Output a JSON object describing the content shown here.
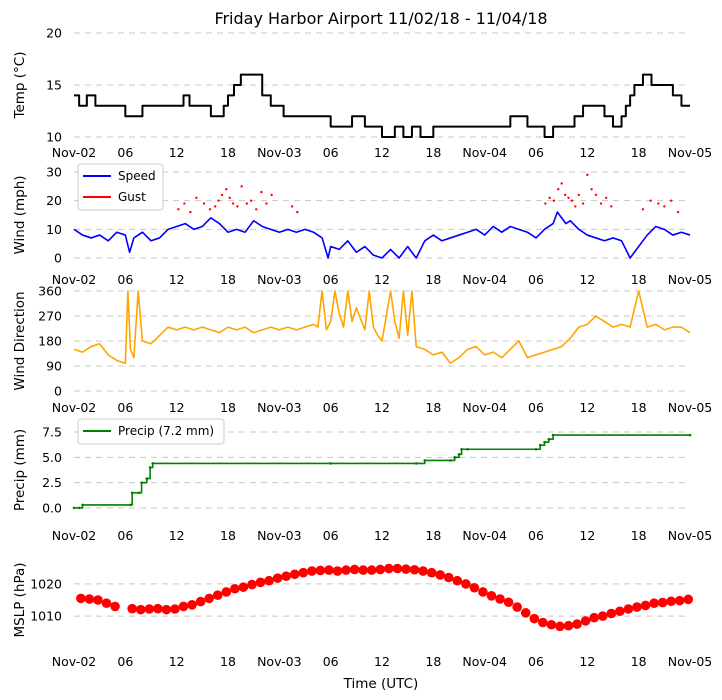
{
  "chart_data": {
    "title": "Friday Harbor Airport 11/02/18 - 11/04/18",
    "xlabel": "Time (UTC)",
    "x_unit": "hours since 2018-11-02 00:00 UTC",
    "xlim": [
      0,
      72
    ],
    "x_ticks": [
      {
        "h": 0,
        "label": "Nov-02"
      },
      {
        "h": 6,
        "label": "06"
      },
      {
        "h": 12,
        "label": "12"
      },
      {
        "h": 18,
        "label": "18"
      },
      {
        "h": 24,
        "label": "Nov-03"
      },
      {
        "h": 30,
        "label": "06"
      },
      {
        "h": 36,
        "label": "12"
      },
      {
        "h": 42,
        "label": "18"
      },
      {
        "h": 48,
        "label": "Nov-04"
      },
      {
        "h": 54,
        "label": "06"
      },
      {
        "h": 60,
        "label": "12"
      },
      {
        "h": 66,
        "label": "18"
      },
      {
        "h": 72,
        "label": "Nov-05"
      }
    ],
    "panels": [
      {
        "id": "temp",
        "type": "line",
        "ylabel": "Temp ($^\\circ$C)",
        "ylabel_text": "Temp (°C)",
        "ylim": [
          10,
          20
        ],
        "y_ticks": [
          10,
          15,
          20
        ],
        "color": "#000000",
        "series": [
          {
            "name": "Temp",
            "x": [
              0,
              0.6,
              1.5,
              2.5,
              5,
              6,
              8,
              10,
              12,
              12.8,
              13.5,
              16,
              17.5,
              18,
              18.7,
              19.5,
              22,
              23,
              24.5,
              25.5,
              28,
              30,
              31.5,
              32.5,
              34,
              36,
              37.5,
              38.5,
              39.5,
              40.5,
              42,
              46,
              48,
              50,
              51,
              53,
              54,
              55,
              56,
              57,
              58,
              58.5,
              59.5,
              62,
              63,
              64,
              64.5,
              65,
              65.5,
              66.5,
              67.5,
              68.5,
              70,
              71,
              72
            ],
            "y": [
              14,
              13,
              14,
              13,
              13,
              12,
              13,
              13,
              13,
              14,
              13,
              12,
              13,
              14,
              15,
              16,
              14,
              13,
              12,
              12,
              12,
              11,
              11,
              12,
              11,
              10,
              11,
              10,
              11,
              10,
              11,
              11,
              11,
              11,
              12,
              11,
              11,
              10,
              11,
              11,
              11,
              12,
              13,
              12,
              11,
              12,
              13,
              14,
              15,
              16,
              15,
              15,
              14,
              13,
              13
            ]
          }
        ]
      },
      {
        "id": "wind",
        "type": "line+scatter",
        "ylabel": "Wind (mph)",
        "ylim": [
          0,
          30
        ],
        "y_ticks": [
          0,
          10,
          20,
          30
        ],
        "legend": [
          {
            "label": "Speed",
            "color": "#0000ff"
          },
          {
            "label": "Gust",
            "color": "#ff0000"
          }
        ],
        "series": [
          {
            "name": "Speed",
            "color": "#0000ff",
            "x": [
              0,
              1,
              2,
              3,
              4,
              5,
              6,
              6.5,
              7,
              8,
              9,
              10,
              11,
              12,
              13,
              14,
              15,
              16,
              17,
              18,
              19,
              20,
              21,
              22,
              23,
              24,
              25,
              26,
              27,
              28,
              29,
              29.7,
              30,
              31,
              32,
              33,
              34,
              35,
              36,
              37,
              38,
              39,
              40,
              41,
              42,
              43,
              44,
              45,
              46,
              47,
              48,
              49,
              50,
              51,
              52,
              53,
              54,
              55,
              56,
              56.5,
              57,
              57.5,
              58,
              59,
              60,
              61,
              62,
              63,
              64,
              65,
              66,
              67,
              68,
              69,
              70,
              71,
              72
            ],
            "y": [
              10,
              8,
              7,
              8,
              6,
              9,
              8,
              2,
              7,
              9,
              6,
              7,
              10,
              11,
              12,
              10,
              11,
              14,
              12,
              9,
              10,
              9,
              13,
              11,
              10,
              9,
              10,
              9,
              10,
              9,
              7,
              0,
              4,
              3,
              6,
              2,
              4,
              1,
              0,
              3,
              0,
              4,
              0,
              6,
              8,
              6,
              7,
              8,
              9,
              10,
              8,
              11,
              9,
              11,
              10,
              9,
              7,
              10,
              12,
              16,
              14,
              12,
              13,
              10,
              8,
              7,
              6,
              7,
              6,
              0,
              4,
              8,
              11,
              10,
              8,
              9,
              8
            ]
          },
          {
            "name": "Gust",
            "color": "#ff0000",
            "x": [
              12.2,
              12.9,
              13.6,
              14.3,
              15.2,
              15.9,
              16.5,
              16.9,
              17.3,
              17.8,
              18.2,
              18.6,
              19.1,
              19.6,
              20.2,
              20.7,
              21.3,
              21.9,
              22.5,
              23.1,
              25.5,
              26.1,
              55.1,
              55.6,
              56.1,
              56.6,
              57.0,
              57.4,
              57.8,
              58.2,
              58.6,
              59.0,
              59.5,
              60.0,
              60.5,
              61.0,
              61.6,
              62.2,
              62.8,
              66.5,
              67.4,
              68.3,
              69.0,
              69.8,
              70.6
            ],
            "y": [
              17,
              19,
              16,
              21,
              19,
              17,
              18,
              20,
              22,
              24,
              21,
              19,
              18,
              25,
              19,
              20,
              17,
              23,
              19,
              22,
              18,
              16,
              19,
              21,
              20,
              24,
              26,
              22,
              21,
              20,
              18,
              22,
              19,
              29,
              24,
              22,
              19,
              21,
              18,
              17,
              20,
              19,
              18,
              20,
              16
            ]
          }
        ]
      },
      {
        "id": "dir",
        "type": "line",
        "ylabel": "Wind Direction",
        "ylim": [
          0,
          360
        ],
        "y_ticks": [
          0,
          90,
          180,
          270,
          360
        ],
        "color": "#ffa500",
        "series": [
          {
            "name": "Direction",
            "x": [
              0,
              1,
              2,
              3,
              4,
              5,
              6,
              6.3,
              6.6,
              7,
              7.5,
              8,
              9,
              10,
              11,
              12,
              13,
              14,
              15,
              16,
              17,
              18,
              19,
              20,
              21,
              22,
              23,
              24,
              25,
              26,
              27,
              28,
              28.5,
              29,
              29.5,
              30,
              30.5,
              31,
              31.5,
              32,
              32.5,
              33,
              34,
              34.5,
              35,
              35.5,
              36,
              37,
              37.5,
              38,
              38.5,
              39,
              39.5,
              40,
              41,
              42,
              43,
              44,
              45,
              46,
              47,
              48,
              49,
              50,
              51,
              52,
              53,
              54,
              55,
              56,
              57,
              58,
              59,
              60,
              61,
              62,
              63,
              64,
              65,
              66,
              67,
              68,
              69,
              70,
              71,
              72
            ],
            "y": [
              150,
              140,
              160,
              170,
              130,
              110,
              100,
              360,
              150,
              120,
              360,
              180,
              170,
              200,
              230,
              220,
              230,
              220,
              230,
              220,
              210,
              230,
              220,
              230,
              210,
              220,
              230,
              220,
              230,
              220,
              230,
              240,
              230,
              360,
              220,
              250,
              360,
              280,
              230,
              360,
              250,
              300,
              220,
              360,
              230,
              200,
              180,
              360,
              250,
              190,
              360,
              200,
              360,
              160,
              150,
              130,
              140,
              100,
              120,
              150,
              160,
              130,
              140,
              120,
              150,
              180,
              120,
              130,
              140,
              150,
              160,
              190,
              230,
              240,
              270,
              250,
              230,
              240,
              230,
              360,
              230,
              240,
              220,
              230,
              230,
              210
            ]
          }
        ]
      },
      {
        "id": "precip",
        "type": "step",
        "ylabel": "Precip (mm)",
        "ylim": [
          -0.5,
          8.0
        ],
        "y_ticks": [
          0.0,
          2.5,
          5.0,
          7.5
        ],
        "color": "#008000",
        "legend": [
          {
            "label": "Precip (7.2 mm)",
            "color": "#008000"
          }
        ],
        "series": [
          {
            "name": "Precip (7.2 mm)",
            "x": [
              0,
              0.6,
              1,
              6.6,
              6.8,
              7.6,
              7.9,
              8.5,
              8.9,
              9.2,
              30,
              40,
              41,
              44,
              44.5,
              45,
              45.3,
              46,
              54,
              54.5,
              55,
              55.5,
              56,
              72
            ],
            "y": [
              0,
              0,
              0.3,
              0.3,
              1.5,
              1.5,
              2.5,
              2.9,
              4.0,
              4.4,
              4.4,
              4.4,
              4.7,
              4.7,
              5.0,
              5.3,
              5.8,
              5.8,
              5.8,
              6.2,
              6.5,
              6.8,
              7.2,
              7.2
            ]
          }
        ]
      },
      {
        "id": "mslp",
        "type": "scatter",
        "ylabel": "MSLP (hPa)",
        "ylim": [
          1001,
          1029
        ],
        "y_ticks": [
          1010,
          1020
        ],
        "color": "#ff0000",
        "series": [
          {
            "name": "MSLP",
            "x": [
              0.8,
              1.8,
              2.8,
              3.8,
              4.8,
              6.8,
              7.8,
              8.8,
              9.8,
              10.8,
              11.8,
              12.8,
              13.8,
              14.8,
              15.8,
              16.8,
              17.8,
              18.8,
              19.8,
              20.8,
              21.8,
              22.8,
              23.8,
              24.8,
              25.8,
              26.8,
              27.8,
              28.8,
              29.8,
              30.8,
              31.8,
              32.8,
              33.8,
              34.8,
              35.8,
              36.8,
              37.8,
              38.8,
              39.8,
              40.8,
              41.8,
              42.8,
              43.8,
              44.8,
              45.8,
              46.8,
              47.8,
              48.8,
              49.8,
              50.8,
              51.8,
              52.8,
              53.8,
              54.8,
              55.8,
              56.8,
              57.8,
              58.8,
              59.8,
              60.8,
              61.8,
              62.8,
              63.8,
              64.8,
              65.8,
              66.8,
              67.8,
              68.8,
              69.8,
              70.8,
              71.8
            ],
            "y": [
              1015.5,
              1015.3,
              1015.0,
              1014.0,
              1013.0,
              1012.3,
              1012.0,
              1012.2,
              1012.3,
              1012.0,
              1012.2,
              1013.0,
              1013.5,
              1014.5,
              1015.5,
              1016.5,
              1017.5,
              1018.5,
              1019.0,
              1019.8,
              1020.5,
              1021.0,
              1021.8,
              1022.4,
              1023.0,
              1023.5,
              1024.0,
              1024.2,
              1024.3,
              1024.0,
              1024.3,
              1024.5,
              1024.3,
              1024.3,
              1024.5,
              1024.8,
              1024.8,
              1024.6,
              1024.4,
              1024.0,
              1023.5,
              1022.8,
              1022.0,
              1021.0,
              1020.0,
              1018.8,
              1017.5,
              1016.3,
              1015.3,
              1014.3,
              1012.8,
              1011.0,
              1009.2,
              1008.0,
              1007.3,
              1006.8,
              1007.0,
              1007.5,
              1008.5,
              1009.5,
              1010.0,
              1010.8,
              1011.5,
              1012.2,
              1012.8,
              1013.3,
              1014.0,
              1014.2,
              1014.6,
              1014.8,
              1015.2
            ]
          }
        ]
      }
    ]
  }
}
